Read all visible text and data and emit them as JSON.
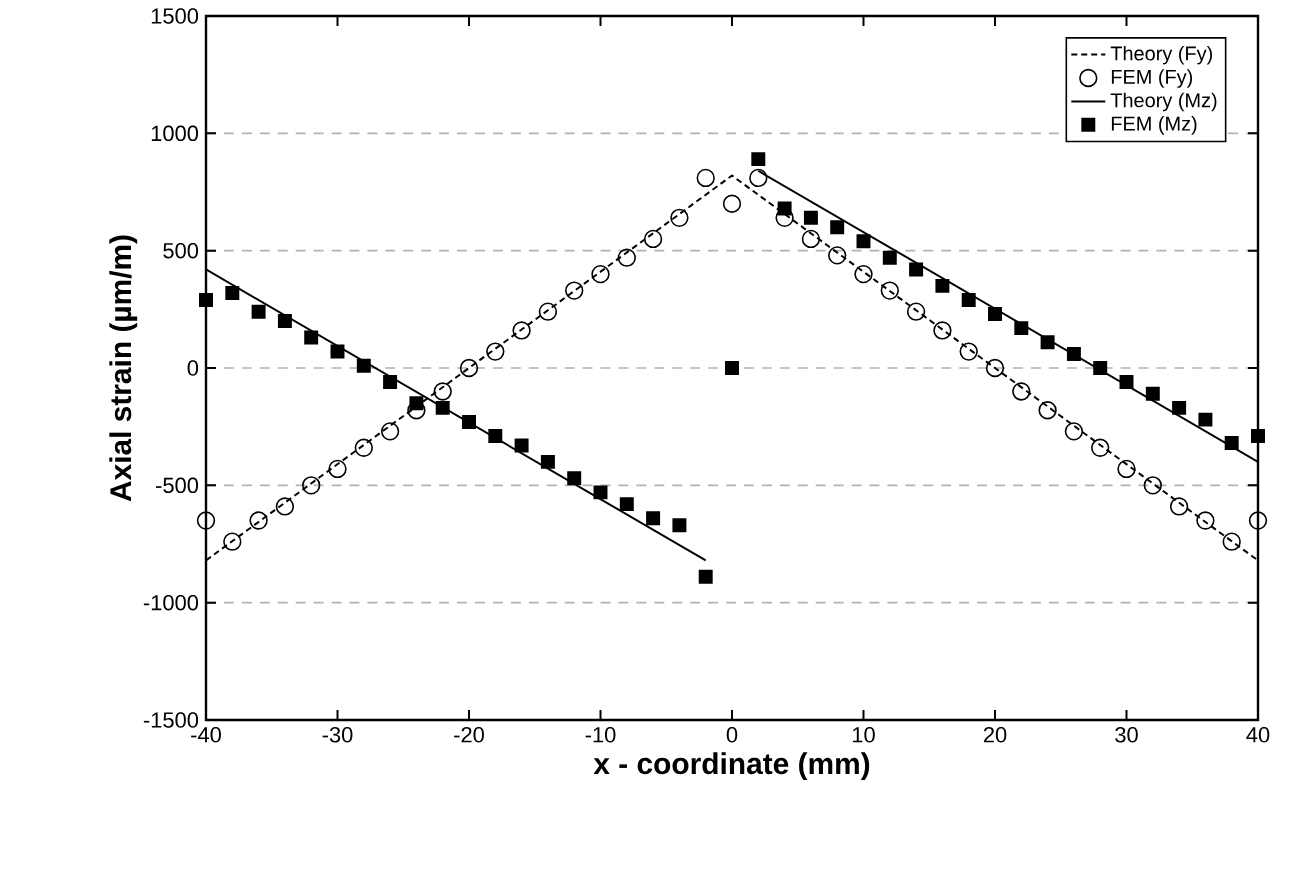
{
  "chart_data": {
    "type": "scatter",
    "xlabel": "x - coordinate (mm)",
    "ylabel": "Axial strain (µm/m)",
    "xlim": [
      -40,
      40
    ],
    "ylim": [
      -1500,
      1500
    ],
    "xticks": [
      -40,
      -30,
      -20,
      -10,
      0,
      10,
      20,
      30,
      40
    ],
    "yticks": [
      -1500,
      -1000,
      -500,
      0,
      500,
      1000,
      1500
    ],
    "grid": "y",
    "legend": "top right",
    "series": [
      {
        "name": "Theory (Fy)",
        "type": "line",
        "line_style": "dashed",
        "marker": "none",
        "color": "#000000",
        "x": [
          -40,
          0,
          40
        ],
        "values": [
          -820,
          820,
          -820
        ]
      },
      {
        "name": "FEM (Fy)",
        "marker": "circle",
        "color": "#000000",
        "x": [
          -40,
          -38,
          -36,
          -34,
          -32,
          -30,
          -28,
          -26,
          -24,
          -22,
          -20,
          -18,
          -16,
          -14,
          -12,
          -10,
          -8,
          -6,
          -4,
          -2,
          0,
          2,
          4,
          6,
          8,
          10,
          12,
          14,
          16,
          18,
          20,
          22,
          24,
          26,
          28,
          30,
          32,
          34,
          36,
          38,
          40
        ],
        "values": [
          -650,
          -740,
          -650,
          -590,
          -500,
          -430,
          -340,
          -270,
          -180,
          -100,
          0,
          70,
          160,
          240,
          330,
          400,
          470,
          550,
          640,
          810,
          700,
          810,
          640,
          550,
          480,
          400,
          330,
          240,
          160,
          70,
          0,
          -100,
          -180,
          -270,
          -340,
          -430,
          -500,
          -590,
          -650,
          -740,
          -650
        ]
      },
      {
        "name": "Theory (Mz)",
        "type": "line",
        "line_style": "solid",
        "marker": "none",
        "color": "#000000",
        "x": [
          -40,
          -2,
          null,
          2,
          40
        ],
        "values": [
          420,
          -820,
          null,
          840,
          -400
        ]
      },
      {
        "name": "FEM (Mz)",
        "marker": "square",
        "color": "#000000",
        "x": [
          -40,
          -38,
          -36,
          -34,
          -32,
          -30,
          -28,
          -26,
          -24,
          -22,
          -20,
          -18,
          -16,
          -14,
          -12,
          -10,
          -8,
          -6,
          -4,
          -2,
          0,
          2,
          4,
          6,
          8,
          10,
          12,
          14,
          16,
          18,
          20,
          22,
          24,
          26,
          28,
          30,
          32,
          34,
          36,
          38,
          40
        ],
        "values": [
          290,
          320,
          240,
          200,
          130,
          70,
          10,
          -60,
          -150,
          -170,
          -230,
          -290,
          -330,
          -400,
          -470,
          -530,
          -580,
          -640,
          -670,
          -890,
          0,
          890,
          680,
          640,
          600,
          540,
          470,
          420,
          350,
          290,
          230,
          170,
          110,
          60,
          0,
          -60,
          -110,
          -170,
          -220,
          -320,
          -290
        ]
      }
    ]
  }
}
